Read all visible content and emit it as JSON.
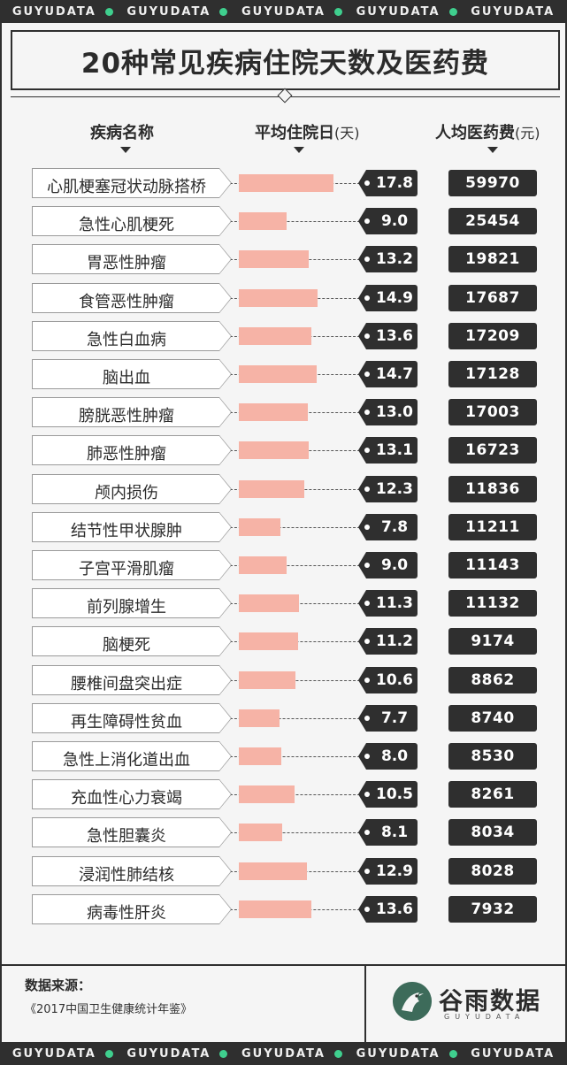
{
  "brand_strip": [
    "GUYUDATA",
    "GUYUDATA",
    "GUYUDATA",
    "GUYUDATA",
    "GUYUDATA"
  ],
  "title": "20种常见疾病住院天数及医药费",
  "headers": {
    "disease": "疾病名称",
    "days": "平均住院日",
    "days_unit": "(天)",
    "cost": "人均医药费",
    "cost_unit": "(元)"
  },
  "colors": {
    "bar": "#f6b3a6",
    "dark": "#2f2f2f",
    "accent_dot": "#3fcf8e"
  },
  "chart_data": {
    "type": "bar",
    "orientation": "horizontal",
    "title": "20种常见疾病住院天数及医药费",
    "categories": [
      "心肌梗塞冠状动脉搭桥",
      "急性心肌梗死",
      "胃恶性肿瘤",
      "食管恶性肿瘤",
      "急性白血病",
      "脑出血",
      "膀胱恶性肿瘤",
      "肺恶性肿瘤",
      "颅内损伤",
      "结节性甲状腺肿",
      "子宫平滑肌瘤",
      "前列腺增生",
      "脑梗死",
      "腰椎间盘突出症",
      "再生障碍性贫血",
      "急性上消化道出血",
      "充血性心力衰竭",
      "急性胆囊炎",
      "浸润性肺结核",
      "病毒性肝炎"
    ],
    "series": [
      {
        "name": "平均住院日",
        "values": [
          17.8,
          9.0,
          13.2,
          14.9,
          13.6,
          14.7,
          13.0,
          13.1,
          12.3,
          7.8,
          9.0,
          11.3,
          11.2,
          10.6,
          7.7,
          8.0,
          10.5,
          8.1,
          12.9,
          13.6
        ]
      },
      {
        "name": "人均医药费",
        "values": [
          59970,
          25454,
          19821,
          17687,
          17209,
          17128,
          17003,
          16723,
          11836,
          11211,
          11143,
          11132,
          9174,
          8862,
          8740,
          8530,
          8261,
          8034,
          8028,
          7932
        ]
      }
    ],
    "days_labels": [
      "17.8",
      "9.0",
      "13.2",
      "14.9",
      "13.6",
      "14.7",
      "13.0",
      "13.1",
      "12.3",
      "7.8",
      "9.0",
      "11.3",
      "11.2",
      "10.6",
      "7.7",
      "8.0",
      "10.5",
      "8.1",
      "12.9",
      "13.6"
    ],
    "cost_labels": [
      "59970",
      "25454",
      "19821",
      "17687",
      "17209",
      "17128",
      "17003",
      "16723",
      "11836",
      "11211",
      "11143",
      "11132",
      "9174",
      "8862",
      "8740",
      "8530",
      "8261",
      "8034",
      "8028",
      "7932"
    ]
  },
  "footer": {
    "source_label": "数据来源：",
    "source_text": "《2017中国卫生健康统计年鉴》",
    "logo_cn": "谷雨数据",
    "logo_en": "GUYUDATA",
    "logo_icon": "guyu-bird-icon"
  }
}
